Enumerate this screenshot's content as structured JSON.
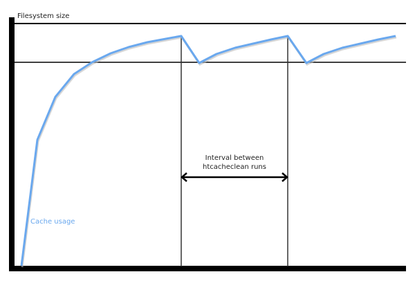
{
  "diagram": {
    "y_axis_label": "Filesystem size",
    "interval_label_line1": "Interval between",
    "interval_label_line2": "htcacheclean runs",
    "series_label": "Cache usage",
    "series_color": "#6aa8ee",
    "axis_color": "#000000"
  }
}
